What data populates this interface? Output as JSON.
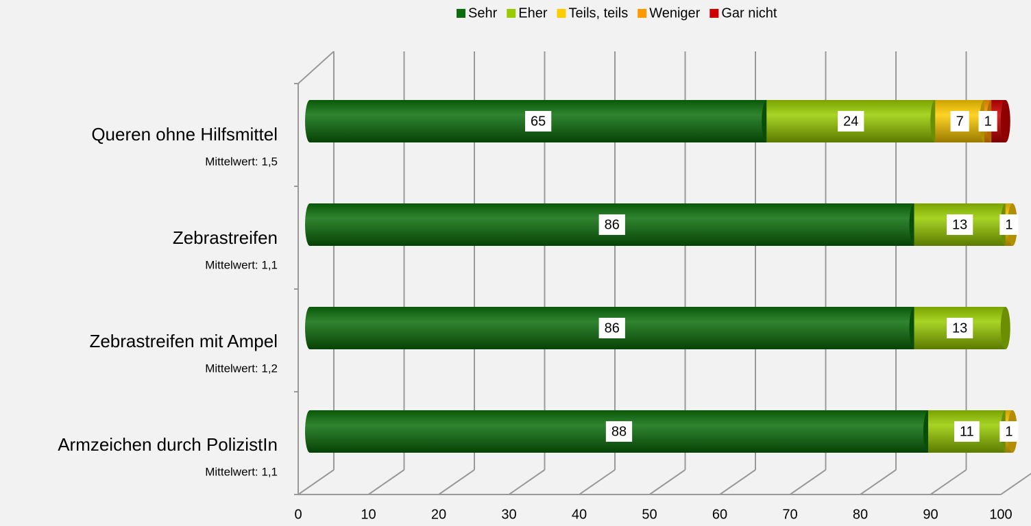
{
  "chart_data": {
    "type": "bar3d_stacked_horizontal",
    "categories": [
      "Queren ohne Hilfsmittel",
      "Zebrastreifen",
      "Zebrastreifen mit Ampel",
      "Armzeichen durch PolizistIn"
    ],
    "category_notes": [
      "Mittelwert: 1,5",
      "Mittelwert: 1,1",
      "Mittelwert: 1,2",
      "Mittelwert: 1,1"
    ],
    "series": [
      {
        "name": "Sehr",
        "color": "#0b6e0b",
        "values": [
          65,
          86,
          86,
          88
        ],
        "value_labels": [
          "65",
          "86",
          "86",
          "88"
        ]
      },
      {
        "name": "Eher",
        "color": "#99cc00",
        "values": [
          24,
          13,
          13,
          11
        ],
        "value_labels": [
          "24",
          "13",
          "13",
          "11"
        ]
      },
      {
        "name": "Teils, teils",
        "color": "#ffcc00",
        "values": [
          7,
          1,
          0,
          1
        ],
        "value_labels": [
          "7",
          "1",
          null,
          "1"
        ]
      },
      {
        "name": "Weniger",
        "color": "#ff9900",
        "values": [
          1,
          0,
          0,
          0
        ],
        "value_labels": [
          "1",
          null,
          null,
          null
        ]
      },
      {
        "name": "Gar nicht",
        "color": "#cc0000",
        "values": [
          2,
          0,
          0,
          0
        ],
        "value_labels": [
          null,
          null,
          null,
          null
        ]
      }
    ],
    "xlim": [
      0,
      100
    ],
    "xticks": [
      0,
      10,
      20,
      30,
      40,
      50,
      60,
      70,
      80,
      90,
      100
    ],
    "legend": "top"
  }
}
